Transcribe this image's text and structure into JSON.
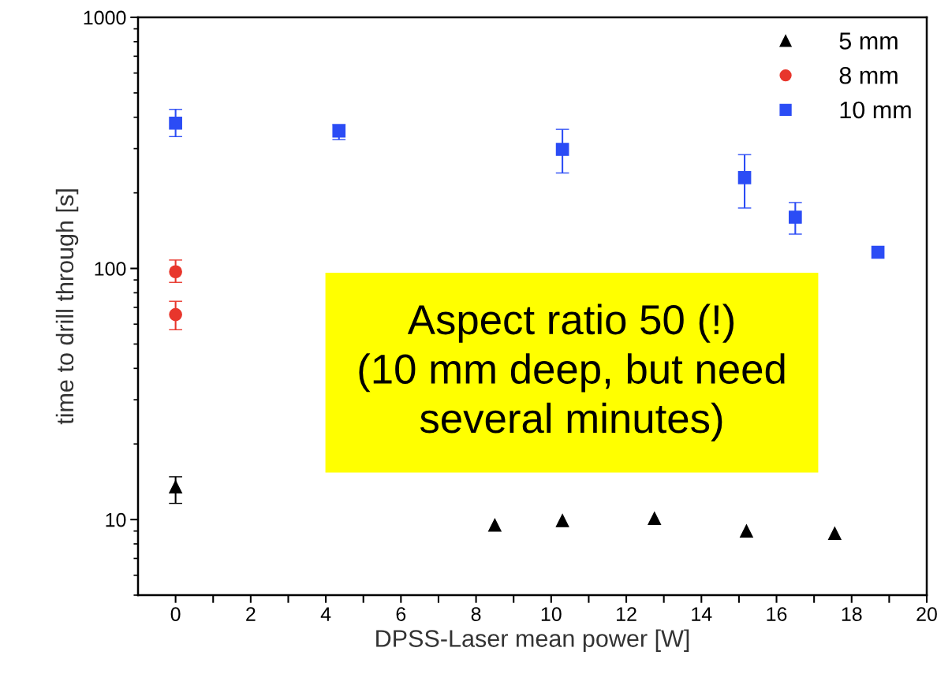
{
  "chart_data": {
    "type": "scatter",
    "xlabel": "DPSS-Laser mean power [W]",
    "ylabel": "time to drill through [s]",
    "log": "y",
    "grid": false,
    "legend": "top right",
    "xlim": [
      -1,
      20
    ],
    "xticks": [
      0,
      {
        "value": 1,
        "label": null
      },
      2,
      {
        "value": 3,
        "label": null
      },
      4,
      {
        "value": 5,
        "label": null
      },
      6,
      {
        "value": 7,
        "label": null
      },
      8,
      {
        "value": 9,
        "label": null
      },
      10,
      {
        "value": 11,
        "label": null
      },
      12,
      {
        "value": 13,
        "label": null
      },
      14,
      {
        "value": 15,
        "label": null
      },
      16,
      {
        "value": 17,
        "label": null
      },
      18,
      {
        "value": 19,
        "label": null
      },
      20
    ],
    "ylim": [
      5,
      1000
    ],
    "yticks": [
      10,
      100,
      1000
    ],
    "series": [
      {
        "name": "5 mm",
        "color": "#000000",
        "marker": "triangle",
        "x": [
          0,
          8.5,
          10.3,
          12.75,
          15.2,
          17.55
        ],
        "values": [
          13.5,
          9.5,
          9.9,
          10.1,
          9.0,
          8.8
        ],
        "errors": [
          [
            11.6,
            14.8
          ],
          null,
          null,
          null,
          null,
          null
        ]
      },
      {
        "name": "8 mm",
        "color": "#e8362c",
        "marker": "circle",
        "x": [
          0,
          0
        ],
        "values": [
          97,
          65.5
        ],
        "errors": [
          [
            88,
            108
          ],
          [
            57,
            74
          ]
        ]
      },
      {
        "name": "10 mm",
        "color": "#2b4cf5",
        "marker": "square",
        "x": [
          0,
          4.35,
          10.3,
          15.15,
          16.5,
          18.7
        ],
        "values": [
          379,
          353,
          298,
          230,
          160,
          116
        ],
        "errors": [
          [
            335,
            430
          ],
          [
            326,
            374
          ],
          [
            240,
            358
          ],
          [
            174,
            284
          ],
          [
            137,
            183
          ],
          null
        ]
      }
    ],
    "annotations": [
      "Aspect ratio 50 (!)\n(10 mm deep, but need\nseveral minutes)"
    ]
  }
}
